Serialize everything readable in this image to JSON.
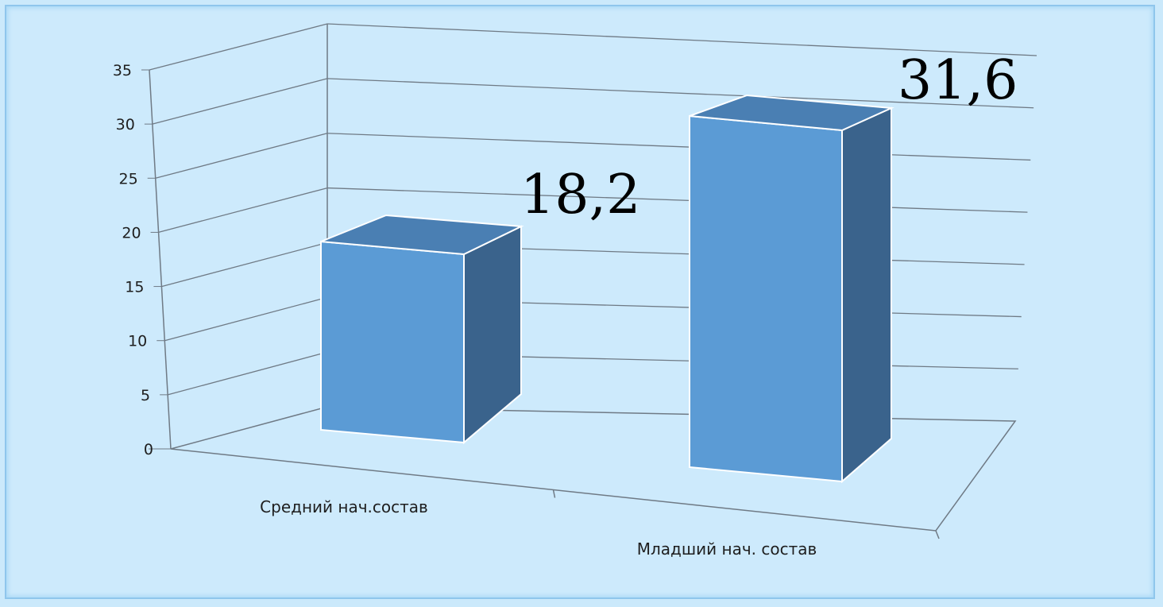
{
  "chart_data": {
    "type": "bar",
    "style": "3d-column",
    "categories": [
      "Средний нач.состав",
      "Младший нач. состав"
    ],
    "series": [
      {
        "values": [
          18.2,
          31.6
        ],
        "labels": [
          "18,2",
          "31,6"
        ]
      }
    ],
    "ylim": [
      0,
      35
    ],
    "yticks": [
      "0",
      "5",
      "10",
      "15",
      "20",
      "25",
      "30",
      "35"
    ],
    "grid": true,
    "legend": "none",
    "colors": {
      "front": "#5b9bd5",
      "top": "#4a7fb3",
      "side": "#3a638c",
      "background": "#cdeafc",
      "grid": "#6f7a85"
    }
  }
}
